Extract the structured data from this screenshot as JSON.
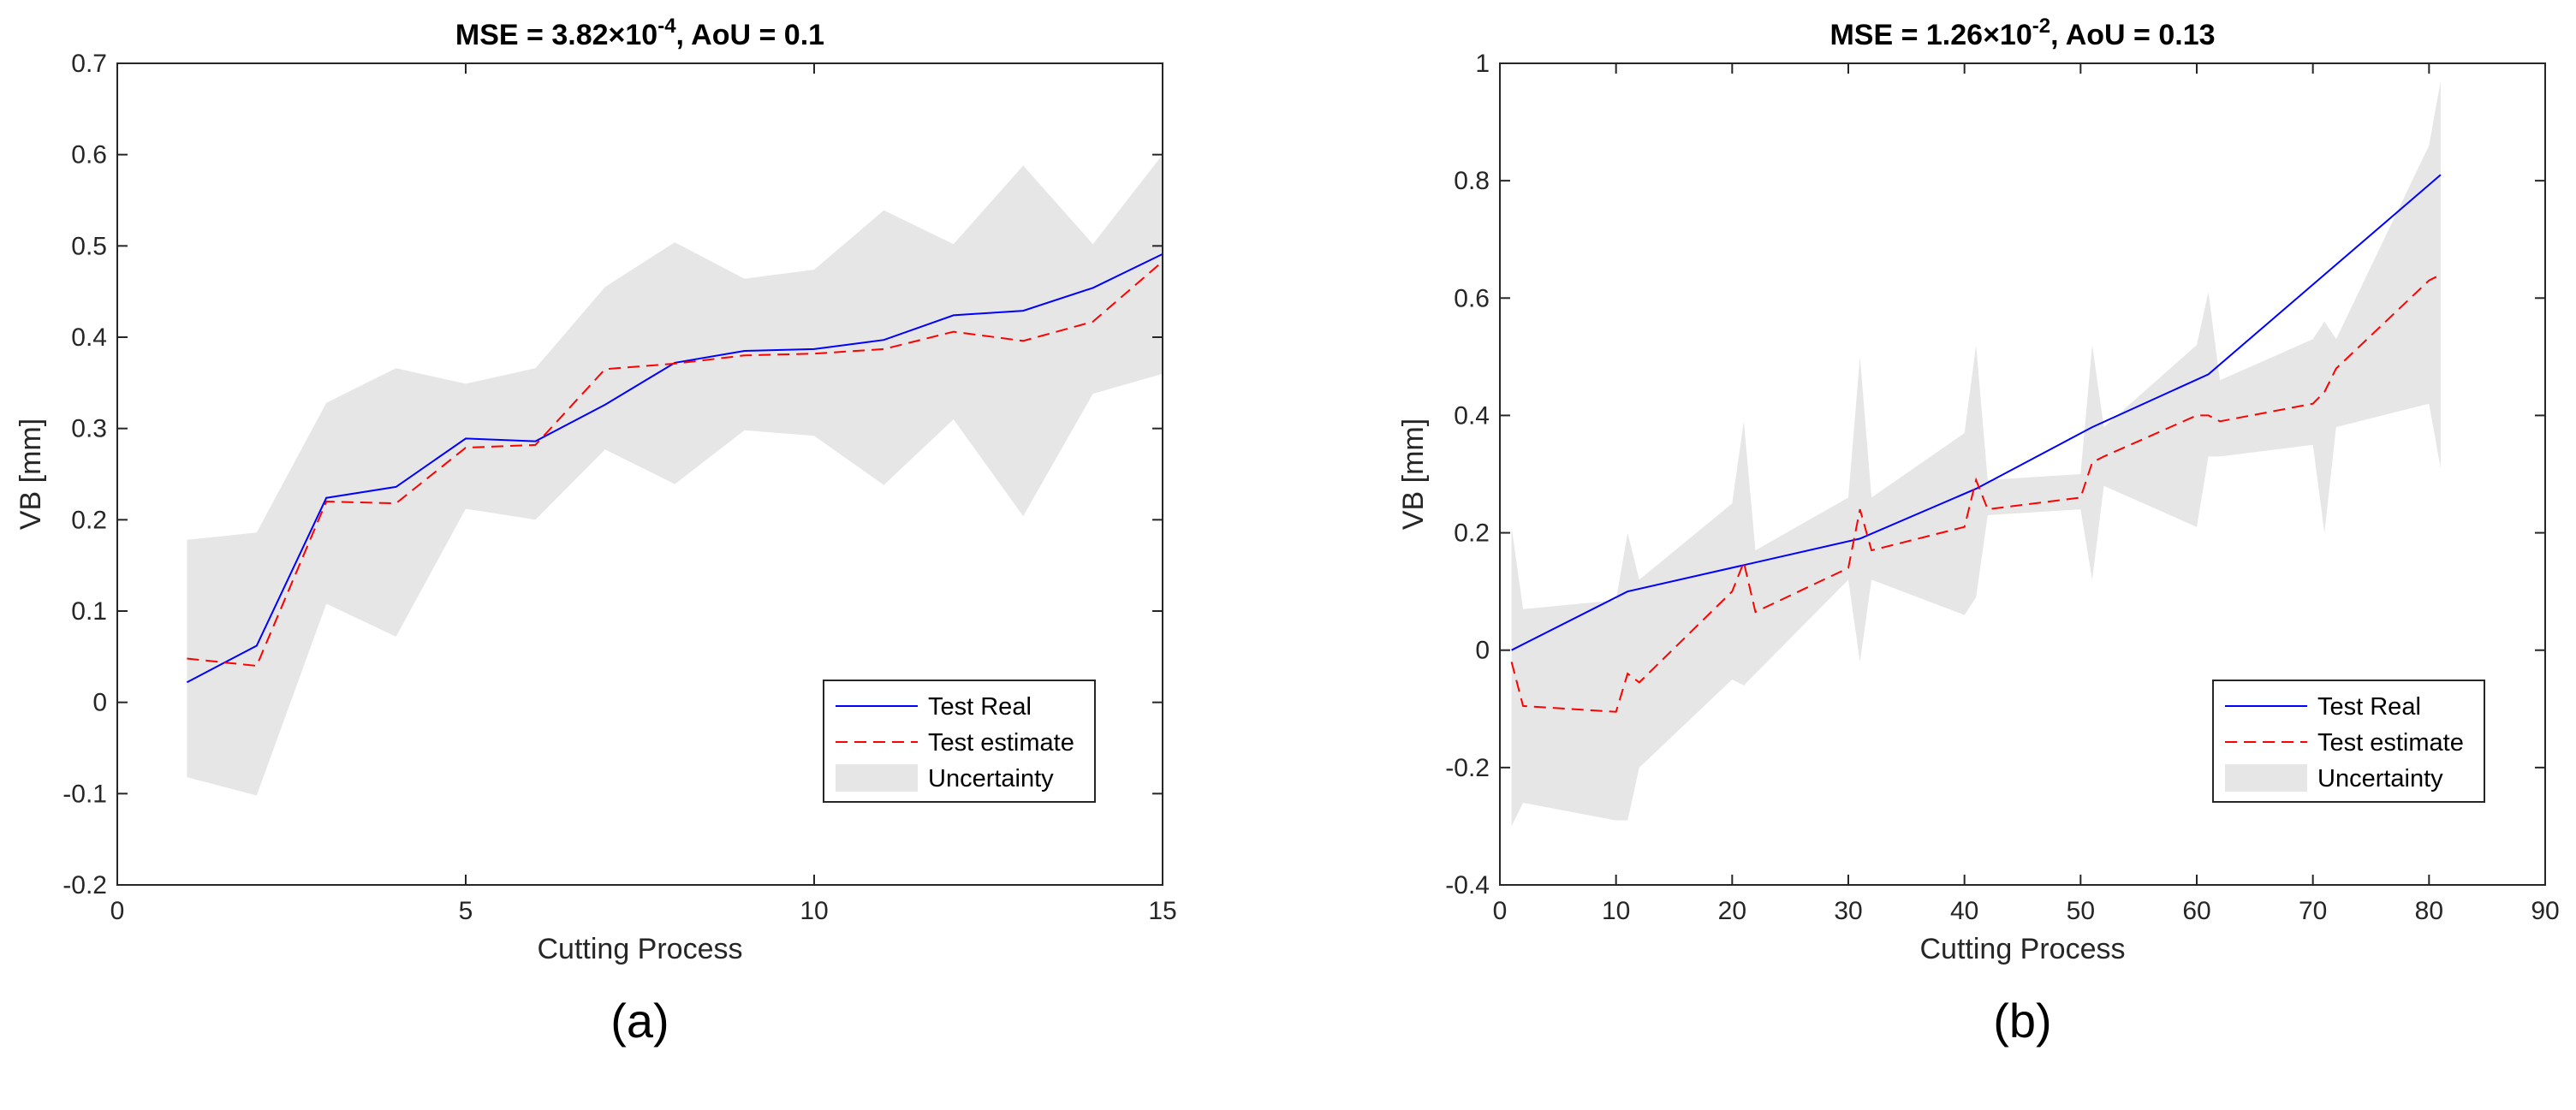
{
  "colors": {
    "real": "#0000ff",
    "estimate": "#ff0000",
    "uncertainty": "#e6e6e6",
    "axis": "#262626"
  },
  "chart_data": [
    {
      "type": "line",
      "caption": "(a)",
      "title": {
        "prefix": "MSE = 3.82",
        "times": "×",
        "base": "10",
        "exponent": "-4",
        "suffix": ", AoU = 0.1"
      },
      "xlabel": "Cutting Process",
      "ylabel": "VB [mm]",
      "xlim": [
        0,
        15
      ],
      "ylim": [
        -0.2,
        0.7
      ],
      "xticks": [
        0,
        5,
        10,
        15
      ],
      "xtick_labels": [
        "0",
        "5",
        "10",
        "15"
      ],
      "yticks": [
        -0.2,
        -0.1,
        0,
        0.1,
        0.2,
        0.3,
        0.4,
        0.5,
        0.6,
        0.7
      ],
      "ytick_labels": [
        "-0.2",
        "-0.1",
        "0",
        "0.1",
        "0.2",
        "0.3",
        "0.4",
        "0.5",
        "0.6",
        "0.7"
      ],
      "legend": {
        "position": "bottom-right",
        "entries": [
          "Test Real",
          "Test estimate",
          "Uncertainty"
        ]
      },
      "series": [
        {
          "name": "Test Real",
          "style": "solid",
          "x": [
            1,
            2,
            3,
            4,
            5,
            6,
            7,
            8,
            9,
            10,
            11,
            12,
            13,
            14,
            15
          ],
          "y": [
            0.022,
            0.062,
            0.224,
            0.236,
            0.289,
            0.286,
            0.326,
            0.372,
            0.385,
            0.387,
            0.397,
            0.424,
            0.429,
            0.454,
            0.491
          ]
        },
        {
          "name": "Test estimate",
          "style": "dashed",
          "x": [
            1,
            2,
            3,
            4,
            5,
            6,
            7,
            8,
            9,
            10,
            11,
            12,
            13,
            14,
            15
          ],
          "y": [
            0.048,
            0.04,
            0.22,
            0.218,
            0.279,
            0.282,
            0.365,
            0.371,
            0.38,
            0.382,
            0.387,
            0.406,
            0.396,
            0.417,
            0.483
          ]
        }
      ],
      "band": {
        "name": "Uncertainty",
        "x": [
          1,
          2,
          3,
          4,
          5,
          6,
          7,
          8,
          9,
          10,
          11,
          12,
          13,
          14,
          15
        ],
        "upper": [
          0.178,
          0.186,
          0.328,
          0.366,
          0.349,
          0.366,
          0.455,
          0.504,
          0.464,
          0.474,
          0.539,
          0.502,
          0.588,
          0.502,
          0.6
        ],
        "lower": [
          -0.082,
          -0.102,
          0.108,
          0.072,
          0.212,
          0.2,
          0.277,
          0.239,
          0.298,
          0.292,
          0.238,
          0.31,
          0.204,
          0.338,
          0.36
        ]
      }
    },
    {
      "type": "line",
      "caption": "(b)",
      "title": {
        "prefix": "MSE = 1.26",
        "times": "×",
        "base": "10",
        "exponent": "-2",
        "suffix": ",  AoU = 0.13"
      },
      "xlabel": "Cutting Process",
      "ylabel": "VB [mm]",
      "xlim": [
        0,
        90
      ],
      "ylim": [
        -0.4,
        1.0
      ],
      "xticks": [
        0,
        10,
        20,
        30,
        40,
        50,
        60,
        70,
        80,
        90
      ],
      "xtick_labels": [
        "0",
        "10",
        "20",
        "30",
        "40",
        "50",
        "60",
        "70",
        "80",
        "90"
      ],
      "yticks": [
        -0.4,
        -0.2,
        0,
        0.2,
        0.4,
        0.6,
        0.8,
        1.0
      ],
      "ytick_labels": [
        "-0.4",
        "-0.2",
        "0",
        "0.2",
        "0.4",
        "0.6",
        "0.8",
        "1"
      ],
      "legend": {
        "position": "bottom-right",
        "entries": [
          "Test Real",
          "Test estimate",
          "Uncertainty"
        ]
      },
      "series": [
        {
          "name": "Test Real",
          "style": "solid",
          "x": [
            1,
            11,
            21,
            31,
            41,
            51,
            61,
            71,
            81
          ],
          "y": [
            0.0,
            0.1,
            0.145,
            0.19,
            0.275,
            0.38,
            0.47,
            0.64,
            0.81
          ]
        },
        {
          "name": "Test estimate",
          "style": "dashed",
          "x": [
            1,
            2,
            10,
            11,
            12,
            20,
            21,
            22,
            30,
            31,
            32,
            40,
            41,
            42,
            50,
            51,
            52,
            60,
            61,
            62,
            70,
            71,
            72,
            80,
            81
          ],
          "y": [
            -0.02,
            -0.095,
            -0.105,
            -0.04,
            -0.055,
            0.1,
            0.15,
            0.065,
            0.14,
            0.24,
            0.17,
            0.21,
            0.29,
            0.24,
            0.26,
            0.32,
            0.33,
            0.4,
            0.4,
            0.39,
            0.42,
            0.44,
            0.48,
            0.63,
            0.64
          ]
        }
      ],
      "band": {
        "name": "Uncertainty",
        "x": [
          1,
          2,
          10,
          11,
          12,
          20,
          21,
          22,
          30,
          31,
          32,
          40,
          41,
          42,
          50,
          51,
          52,
          60,
          61,
          62,
          70,
          71,
          72,
          80,
          81
        ],
        "upper": [
          0.21,
          0.07,
          0.085,
          0.2,
          0.12,
          0.25,
          0.39,
          0.17,
          0.26,
          0.5,
          0.26,
          0.37,
          0.52,
          0.29,
          0.3,
          0.52,
          0.38,
          0.52,
          0.61,
          0.46,
          0.53,
          0.56,
          0.53,
          0.86,
          0.97
        ],
        "lower": [
          -0.3,
          -0.26,
          -0.29,
          -0.29,
          -0.2,
          -0.05,
          -0.06,
          -0.04,
          0.12,
          -0.02,
          0.12,
          0.06,
          0.09,
          0.23,
          0.24,
          0.12,
          0.28,
          0.21,
          0.33,
          0.33,
          0.35,
          0.2,
          0.38,
          0.42,
          0.31
        ]
      }
    }
  ]
}
